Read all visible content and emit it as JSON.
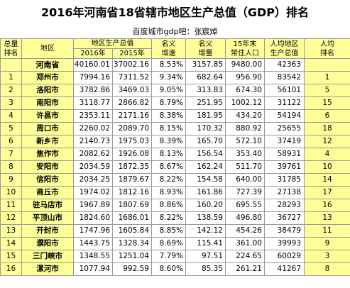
{
  "title": "2016年河南省18省辖市地区生产总值（GDP）排名",
  "subtitle": "百度城市gdp吧：张宸焯",
  "headers": {
    "rank_l1": "总量",
    "rank_l2": "排名",
    "region": "地区",
    "gdp": "地区生产总值",
    "y2016": "2016年",
    "y2015": "2015年",
    "nominal_l1": "名义",
    "nominal_l2": "增速",
    "inc_l1": "名义",
    "inc_l2": "增量",
    "pop_l1": "15年末",
    "pop_l2": "常住人口",
    "pc_l1": "人均地区",
    "pc_l2": "生产总值",
    "pcrank_l1": "人均",
    "pcrank_l2": "排名"
  },
  "rows": [
    {
      "rank": "",
      "region": "河南省",
      "gdp2016": "40160.01",
      "gdp2015": "37002.16",
      "growth": "8.53%",
      "increase": "3157.85",
      "population": "9480.00",
      "per_capita": "42363",
      "pc_rank": ""
    },
    {
      "rank": "1",
      "region": "郑州市",
      "gdp2016": "7994.16",
      "gdp2015": "7311.52",
      "growth": "9.34%",
      "increase": "682.64",
      "population": "956.90",
      "per_capita": "83542",
      "pc_rank": "1"
    },
    {
      "rank": "2",
      "region": "洛阳市",
      "gdp2016": "3782.86",
      "gdp2015": "3469.03",
      "growth": "9.05%",
      "increase": "313.83",
      "population": "674.30",
      "per_capita": "56101",
      "pc_rank": "5"
    },
    {
      "rank": "3",
      "region": "南阳市",
      "gdp2016": "3118.77",
      "gdp2015": "2866.82",
      "growth": "8.79%",
      "increase": "251.95",
      "population": "1002.12",
      "per_capita": "31122",
      "pc_rank": "15"
    },
    {
      "rank": "4",
      "region": "许昌市",
      "gdp2016": "2353.11",
      "gdp2015": "2171.16",
      "growth": "8.38%",
      "increase": "181.95",
      "population": "434.20",
      "per_capita": "54194",
      "pc_rank": "6"
    },
    {
      "rank": "5",
      "region": "周口市",
      "gdp2016": "2260.02",
      "gdp2015": "2089.70",
      "growth": "8.15%",
      "increase": "170.32",
      "population": "880.92",
      "per_capita": "25655",
      "pc_rank": "18"
    },
    {
      "rank": "6",
      "region": "新乡市",
      "gdp2016": "2140.73",
      "gdp2015": "1975.03",
      "growth": "8.39%",
      "increase": "165.70",
      "population": "572.10",
      "per_capita": "37419",
      "pc_rank": "12"
    },
    {
      "rank": "7",
      "region": "焦作市",
      "gdp2016": "2082.62",
      "gdp2015": "1926.08",
      "growth": "8.13%",
      "increase": "156.54",
      "population": "353.40",
      "per_capita": "58931",
      "pc_rank": "4"
    },
    {
      "rank": "8",
      "region": "安阳市",
      "gdp2016": "2034.59",
      "gdp2015": "1872.35",
      "growth": "8.67%",
      "increase": "162.24",
      "population": "511.70",
      "per_capita": "39761",
      "pc_rank": "10"
    },
    {
      "rank": "9",
      "region": "信阳市",
      "gdp2016": "2034.25",
      "gdp2015": "1879.67",
      "growth": "8.22%",
      "increase": "154.58",
      "population": "640.00",
      "per_capita": "31785",
      "pc_rank": "14"
    },
    {
      "rank": "10",
      "region": "商丘市",
      "gdp2016": "1974.02",
      "gdp2015": "1812.16",
      "growth": "8.93%",
      "increase": "161.86",
      "population": "727.39",
      "per_capita": "27138",
      "pc_rank": "17"
    },
    {
      "rank": "11",
      "region": "驻马店市",
      "gdp2016": "1967.89",
      "gdp2015": "1807.69",
      "growth": "8.86%",
      "increase": "160.20",
      "population": "695.55",
      "per_capita": "28293",
      "pc_rank": "16"
    },
    {
      "rank": "12",
      "region": "平顶山市",
      "gdp2016": "1824.60",
      "gdp2015": "1686.01",
      "growth": "8.22%",
      "increase": "138.59",
      "population": "496.80",
      "per_capita": "36727",
      "pc_rank": "13"
    },
    {
      "rank": "13",
      "region": "开封市",
      "gdp2016": "1747.96",
      "gdp2015": "1605.84",
      "growth": "8.85%",
      "increase": "142.12",
      "population": "454.26",
      "per_capita": "38479",
      "pc_rank": "11"
    },
    {
      "rank": "14",
      "region": "濮阳市",
      "gdp2016": "1443.75",
      "gdp2015": "1328.34",
      "growth": "8.69%",
      "increase": "115.41",
      "population": "361.00",
      "per_capita": "39993",
      "pc_rank": "9"
    },
    {
      "rank": "15",
      "region": "三门峡市",
      "gdp2016": "1348.55",
      "gdp2015": "1251.04",
      "growth": "7.79%",
      "increase": "97.51",
      "population": "224.65",
      "per_capita": "60029",
      "pc_rank": "3"
    },
    {
      "rank": "16",
      "region": "漯河市",
      "gdp2016": "1077.94",
      "gdp2015": "992.59",
      "growth": "8.60%",
      "increase": "85.35",
      "population": "261.21",
      "per_capita": "41267",
      "pc_rank": "8"
    }
  ]
}
